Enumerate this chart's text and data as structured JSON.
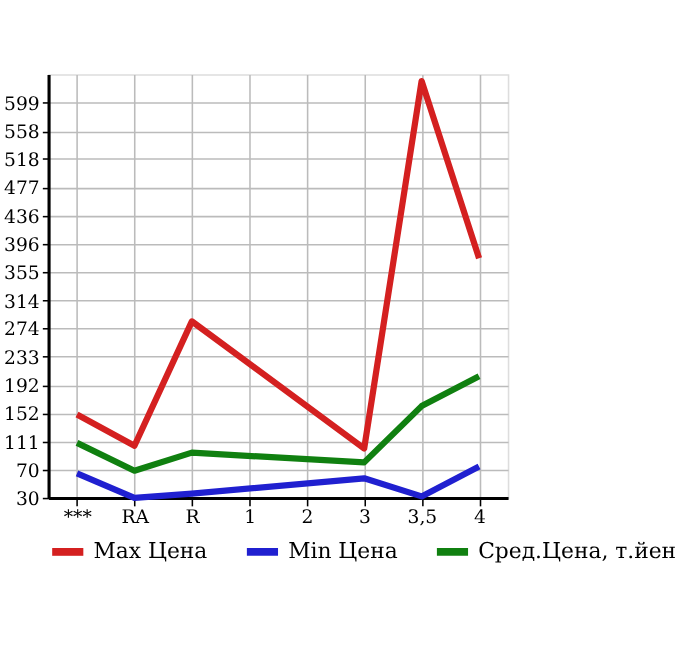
{
  "chart_data": {
    "type": "line",
    "categories": [
      "***",
      "RA",
      "R",
      "1",
      "2",
      "3",
      "3,5",
      "4"
    ],
    "series": [
      {
        "name": "Max Цена",
        "color": "#d42020",
        "values": [
          150,
          105,
          284,
          null,
          null,
          101,
          630,
          375
        ]
      },
      {
        "name": "Min Цена",
        "color": "#2020d0",
        "values": [
          65,
          30,
          36,
          null,
          null,
          58,
          32,
          75
        ]
      },
      {
        "name": "Сред.Цена, т.йен",
        "color": "#108010",
        "values": [
          109,
          69,
          95,
          null,
          null,
          81,
          162,
          205
        ]
      }
    ],
    "ylim": [
      30,
      640
    ],
    "yticks": [
      30,
      70,
      111,
      152,
      192,
      233,
      274,
      314,
      355,
      396,
      436,
      477,
      518,
      558,
      599
    ],
    "grid": true,
    "legend": "bottom",
    "marker": "none",
    "line_style": "solid"
  }
}
